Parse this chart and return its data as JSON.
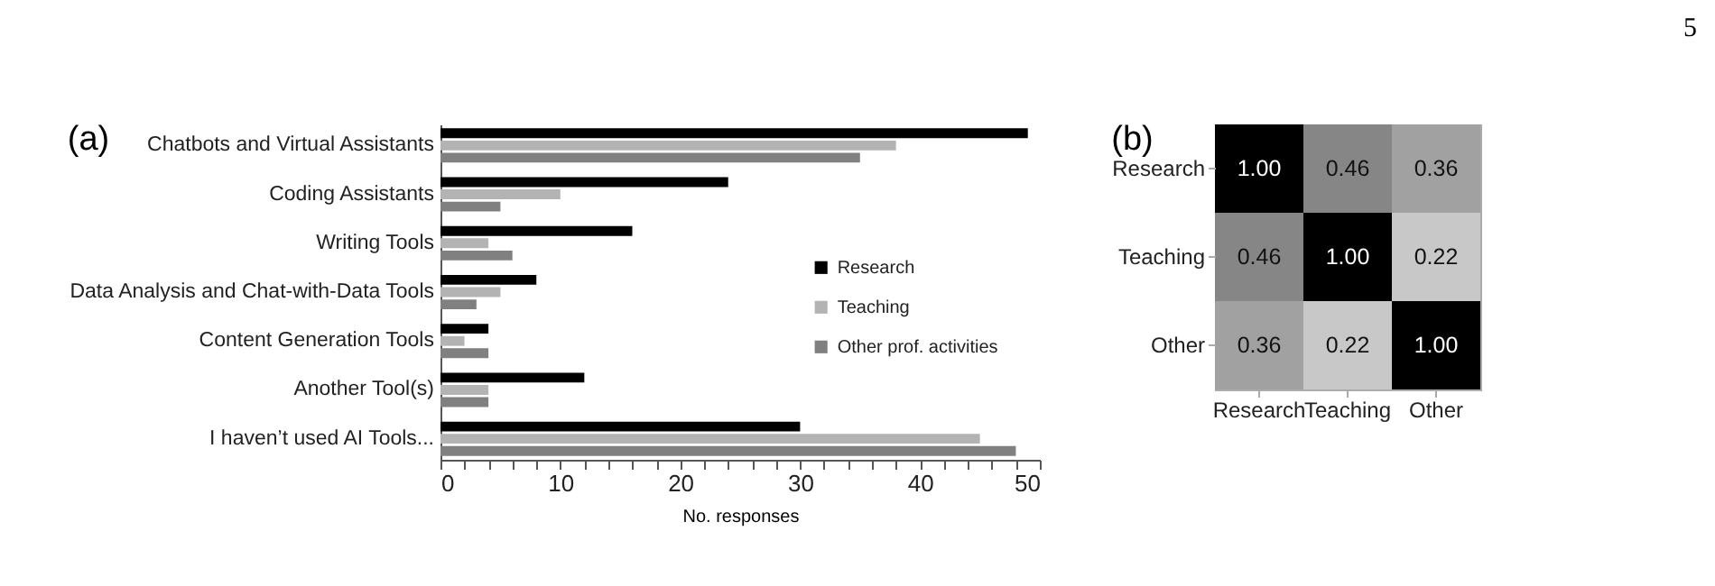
{
  "chart_data": [
    {
      "type": "bar",
      "title": "(a)",
      "orientation": "horizontal",
      "xlabel": "No. responses",
      "categories": [
        "Chatbots and Virtual Assistants",
        "Coding Assistants",
        "Writing Tools",
        "Data Analysis and Chat-with-Data Tools",
        "Content Generation Tools",
        "Another Tool(s)",
        "I haven’t used AI Tools..."
      ],
      "series": [
        {
          "name": "Research",
          "color": "#000000",
          "values": [
            49,
            24,
            16,
            8,
            4,
            12,
            30
          ]
        },
        {
          "name": "Teaching",
          "color": "#b3b3b3",
          "values": [
            38,
            10,
            4,
            5,
            2,
            4,
            45
          ]
        },
        {
          "name": "Other prof. activities",
          "color": "#808080",
          "values": [
            35,
            5,
            6,
            3,
            4,
            4,
            48
          ]
        }
      ],
      "xlim": [
        0,
        50
      ],
      "xticks": [
        0,
        {
          "value": 2,
          "label": null
        },
        {
          "value": 4,
          "label": null
        },
        {
          "value": 6,
          "label": null
        },
        {
          "value": 8,
          "label": null
        },
        10,
        {
          "value": 12,
          "label": null
        },
        {
          "value": 14,
          "label": null
        },
        {
          "value": 16,
          "label": null
        },
        {
          "value": 18,
          "label": null
        },
        20,
        {
          "value": 22,
          "label": null
        },
        {
          "value": 24,
          "label": null
        },
        {
          "value": 26,
          "label": null
        },
        {
          "value": 28,
          "label": null
        },
        30,
        {
          "value": 32,
          "label": null
        },
        {
          "value": 34,
          "label": null
        },
        {
          "value": 36,
          "label": null
        },
        {
          "value": 38,
          "label": null
        },
        40,
        {
          "value": 42,
          "label": null
        },
        {
          "value": 44,
          "label": null
        },
        {
          "value": 46,
          "label": null
        },
        {
          "value": 48,
          "label": null
        },
        50
      ],
      "legend": "right"
    },
    {
      "type": "heatmap",
      "title": "(b)",
      "annotations": [
        "5"
      ],
      "categories": [
        "Research",
        "Teaching",
        "Other"
      ],
      "y_categories": [
        "Research",
        "Teaching",
        "Other"
      ],
      "cells": [
        [
          1.0,
          0.46,
          0.36
        ],
        [
          0.46,
          1.0,
          0.22
        ],
        [
          0.36,
          0.22,
          1.0
        ]
      ],
      "cell_labels": [
        [
          "1.00",
          "0.46",
          "0.36"
        ],
        [
          "0.46",
          "1.00",
          "0.22"
        ],
        [
          "0.36",
          "0.22",
          "1.00"
        ]
      ]
    }
  ]
}
